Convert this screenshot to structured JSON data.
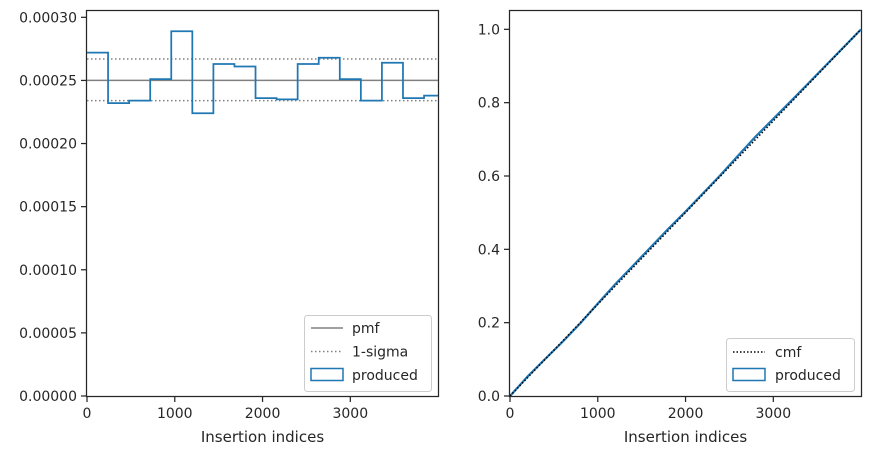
{
  "chart_data": [
    {
      "type": "step",
      "xlabel": "Insertion indices",
      "ylabel": "",
      "xlim": [
        0,
        3999
      ],
      "ylim": [
        0,
        0.000305
      ],
      "xticks": [
        0,
        1000,
        2000,
        3000
      ],
      "xtick_labels": [
        "0",
        "1000",
        "2000",
        "3000"
      ],
      "yticks": [
        0,
        5e-05,
        0.0001,
        0.00015,
        0.0002,
        0.00025,
        0.0003
      ],
      "ytick_labels": [
        "0.00000",
        "0.00005",
        "0.00010",
        "0.00015",
        "0.00020",
        "0.00025",
        "0.00030"
      ],
      "grid": false,
      "legend_position": "lower-right",
      "reference_lines": [
        {
          "name": "pmf",
          "style": "solid",
          "color": "#808080",
          "y": 0.00025
        },
        {
          "name": "1-sigma",
          "style": "dotted",
          "color": "#808080",
          "y": [
            0.000234,
            0.000267
          ]
        }
      ],
      "series": [
        {
          "name": "produced",
          "color": "#1f77b4",
          "bin_width": 240,
          "bin_edges": [
            0,
            240,
            480,
            720,
            960,
            1200,
            1440,
            1680,
            1920,
            2160,
            2400,
            2640,
            2880,
            3120,
            3360,
            3600,
            3840,
            3999
          ],
          "values": [
            0.000272,
            0.000232,
            0.000234,
            0.000251,
            0.000289,
            0.000224,
            0.000263,
            0.000261,
            0.000236,
            0.000235,
            0.000263,
            0.000268,
            0.000251,
            0.000234,
            0.000264,
            0.000236,
            0.000238
          ]
        }
      ]
    },
    {
      "type": "line",
      "xlabel": "Insertion indices",
      "ylabel": "",
      "xlim": [
        0,
        3999
      ],
      "ylim": [
        0,
        1.05
      ],
      "xticks": [
        0,
        1000,
        2000,
        3000
      ],
      "xtick_labels": [
        "0",
        "1000",
        "2000",
        "3000"
      ],
      "yticks": [
        0,
        0.2,
        0.4,
        0.6,
        0.8,
        1.0
      ],
      "ytick_labels": [
        "0.0",
        "0.2",
        "0.4",
        "0.6",
        "0.8",
        "1.0"
      ],
      "grid": false,
      "legend_position": "lower-right",
      "series": [
        {
          "name": "cmf",
          "style": "dotted",
          "color": "#000000",
          "x": [
            0,
            3999
          ],
          "y": [
            0,
            1
          ]
        },
        {
          "name": "produced",
          "style": "solid",
          "color": "#1f77b4",
          "x": [
            0,
            200,
            400,
            600,
            800,
            1000,
            1200,
            1400,
            1600,
            1800,
            2000,
            2200,
            2400,
            2600,
            2800,
            3000,
            3200,
            3400,
            3600,
            3800,
            3999
          ],
          "y": [
            0,
            0.053,
            0.101,
            0.148,
            0.198,
            0.252,
            0.305,
            0.355,
            0.405,
            0.455,
            0.503,
            0.553,
            0.603,
            0.656,
            0.708,
            0.756,
            0.804,
            0.853,
            0.902,
            0.951,
            1.0
          ]
        }
      ]
    }
  ]
}
